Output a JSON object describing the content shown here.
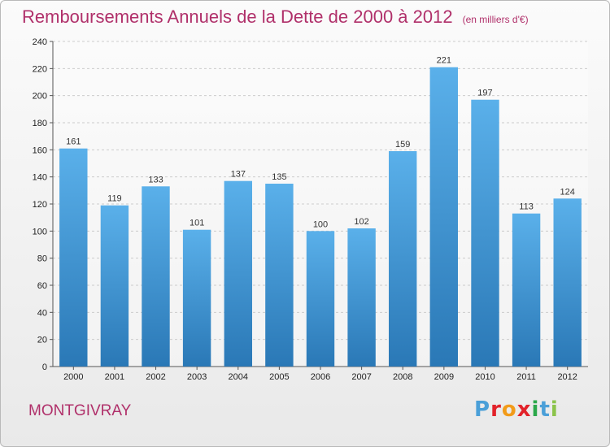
{
  "header": {
    "title": "Remboursements Annuels de la Dette de 2000 à 2012",
    "unit": "(en milliers d'€)"
  },
  "footer": {
    "place": "MONTGIVRAY",
    "logo_letters": [
      "P",
      "r",
      "o",
      "x",
      "i",
      "t",
      "i"
    ],
    "logo_colors": [
      "#4a9fd8",
      "#e2222a",
      "#f29b19",
      "#e2222a",
      "#2aa84a",
      "#4a9fd8",
      "#8bc34a"
    ]
  },
  "colors": {
    "bar_top": "#5ab0ea",
    "bar_bottom": "#2a78b6",
    "grid": "#cccccc",
    "title": "#b0306a"
  },
  "chart_data": {
    "type": "bar",
    "categories": [
      "2000",
      "2001",
      "2002",
      "2003",
      "2004",
      "2005",
      "2006",
      "2007",
      "2008",
      "2009",
      "2010",
      "2011",
      "2012"
    ],
    "values": [
      161,
      119,
      133,
      101,
      137,
      135,
      100,
      102,
      159,
      221,
      197,
      113,
      124
    ],
    "title": "Remboursements Annuels de la Dette de 2000 à 2012",
    "ylim": [
      0,
      240
    ],
    "yticks": [
      0,
      20,
      40,
      60,
      80,
      100,
      120,
      140,
      160,
      180,
      200,
      220,
      240
    ],
    "grid": true,
    "data_labels": true
  }
}
